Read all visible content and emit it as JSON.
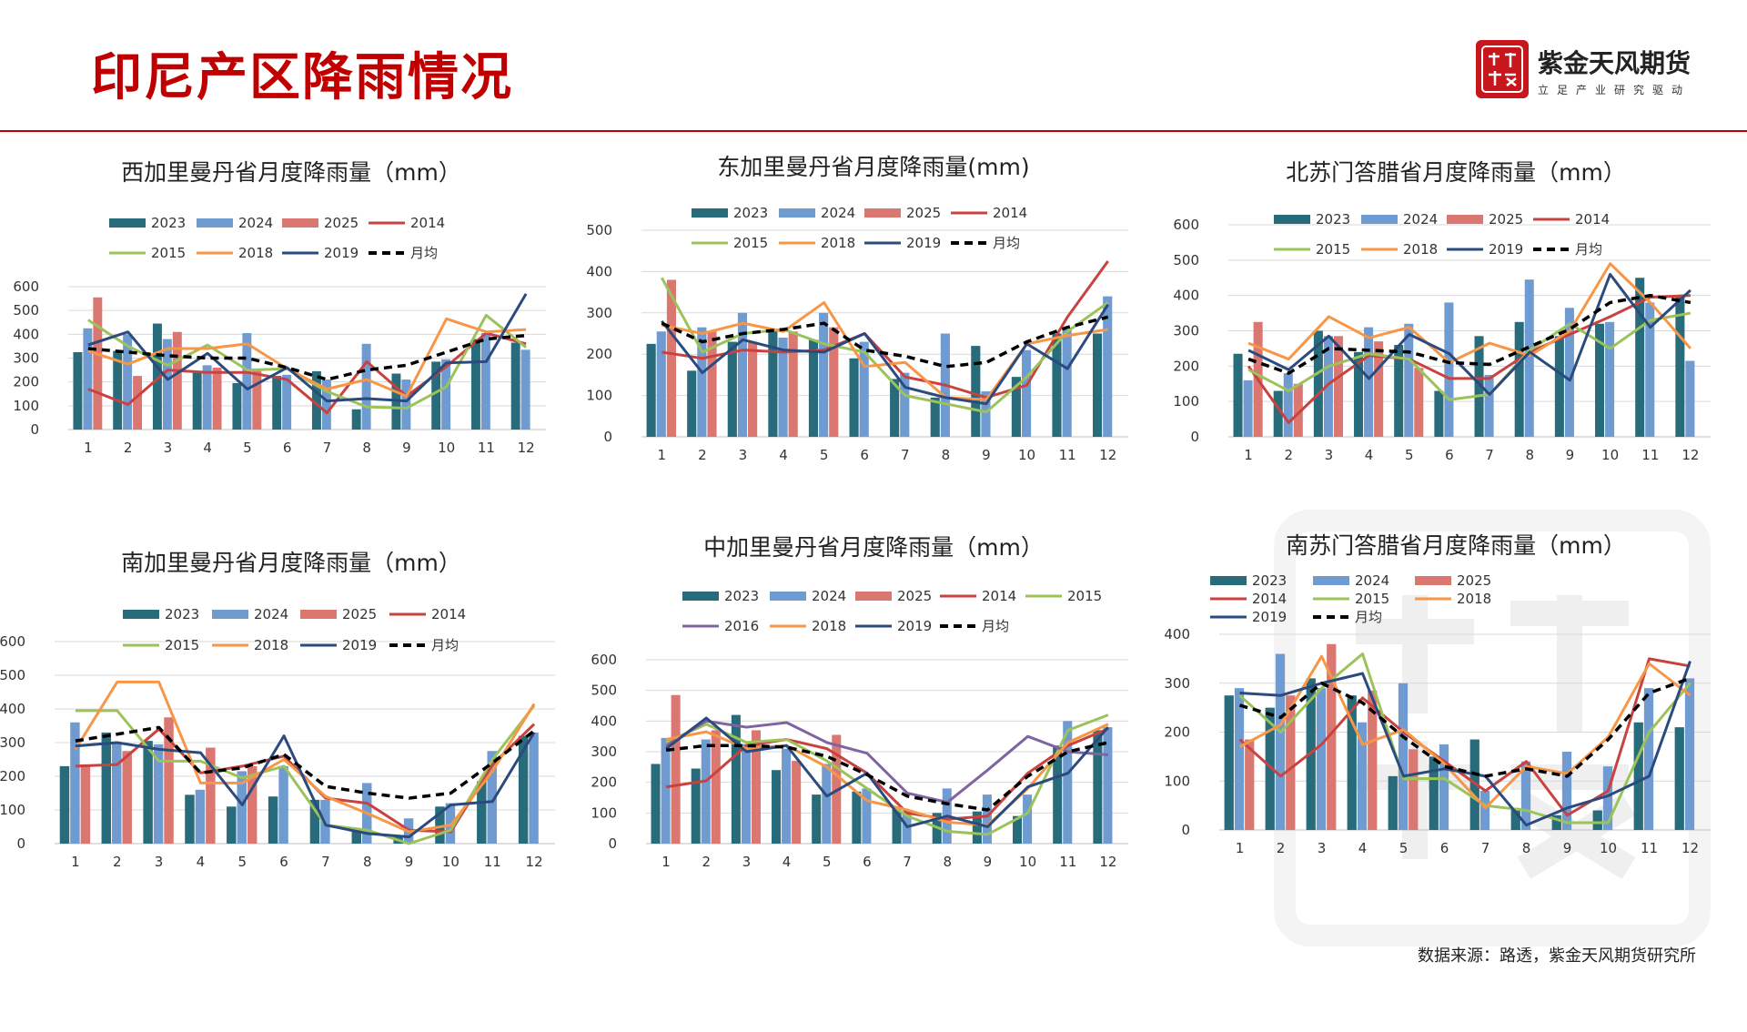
{
  "header": {
    "title": "印尼产区降雨情况",
    "logo_seal_text": "紫天金风",
    "logo_name": "紫金天风期货",
    "logo_slogan": "立足产业研究驱动",
    "accent_color": "#c00000"
  },
  "footer": {
    "source": "数据来源：路透，紫金天风期货研究所"
  },
  "series_styles": {
    "2023": {
      "kind": "bar",
      "color": "#286b7a"
    },
    "2024": {
      "kind": "bar",
      "color": "#6f9bd1"
    },
    "2025": {
      "kind": "bar",
      "color": "#d97770"
    },
    "2014": {
      "kind": "line",
      "color": "#c9423f"
    },
    "2015": {
      "kind": "line",
      "color": "#9bc35a"
    },
    "2016": {
      "kind": "line",
      "color": "#8064a2"
    },
    "2018": {
      "kind": "line",
      "color": "#f79646"
    },
    "2019": {
      "kind": "line",
      "color": "#2b4a7e"
    },
    "月均": {
      "kind": "dash",
      "color": "#000000"
    }
  },
  "chart_data": [
    {
      "type": "bar",
      "title": "西加里曼丹省月度降雨量（mm）",
      "categories": [
        "1",
        "2",
        "3",
        "4",
        "5",
        "6",
        "7",
        "8",
        "9",
        "10",
        "11",
        "12"
      ],
      "ylim": [
        0,
        600
      ],
      "yticks": [
        0,
        100,
        200,
        300,
        400,
        500,
        600
      ],
      "legend_rows": [
        [
          "2023",
          "2024",
          "2025",
          "2014"
        ],
        [
          "2015",
          "2018",
          "2019",
          "月均"
        ]
      ],
      "series": [
        {
          "name": "2023",
          "values": [
            325,
            330,
            445,
            240,
            195,
            225,
            245,
            85,
            235,
            285,
            380,
            365
          ]
        },
        {
          "name": "2024",
          "values": [
            425,
            400,
            380,
            270,
            405,
            230,
            210,
            360,
            210,
            295,
            405,
            335
          ]
        },
        {
          "name": "2025",
          "values": [
            555,
            225,
            410,
            260,
            250,
            null,
            null,
            null,
            null,
            null,
            null,
            null
          ]
        },
        {
          "name": "2014",
          "values": [
            170,
            105,
            250,
            240,
            240,
            210,
            70,
            285,
            140,
            265,
            405,
            360
          ]
        },
        {
          "name": "2015",
          "values": [
            460,
            350,
            270,
            355,
            250,
            255,
            160,
            95,
            90,
            180,
            480,
            345
          ]
        },
        {
          "name": "2018",
          "values": [
            330,
            275,
            340,
            340,
            360,
            255,
            170,
            210,
            140,
            465,
            410,
            420
          ]
        },
        {
          "name": "2019",
          "values": [
            355,
            410,
            210,
            320,
            170,
            260,
            120,
            130,
            120,
            280,
            285,
            570
          ]
        },
        {
          "name": "月均",
          "values": [
            340,
            325,
            310,
            300,
            300,
            260,
            210,
            250,
            270,
            325,
            380,
            395
          ]
        }
      ]
    },
    {
      "type": "bar",
      "title": "东加里曼丹省月度降雨量(mm)",
      "categories": [
        "1",
        "2",
        "3",
        "4",
        "5",
        "6",
        "7",
        "8",
        "9",
        "10",
        "11",
        "12"
      ],
      "ylim": [
        0,
        500
      ],
      "yticks": [
        0,
        100,
        200,
        300,
        400,
        500
      ],
      "legend_rows": [
        [
          "2023",
          "2024",
          "2025",
          "2014"
        ],
        [
          "2015",
          "2018",
          "2019",
          "月均"
        ]
      ],
      "series": [
        {
          "name": "2023",
          "values": [
            225,
            160,
            230,
            260,
            235,
            190,
            140,
            95,
            220,
            145,
            250,
            250
          ]
        },
        {
          "name": "2024",
          "values": [
            255,
            265,
            300,
            240,
            300,
            230,
            155,
            250,
            110,
            210,
            260,
            340
          ]
        },
        {
          "name": "2025",
          "values": [
            380,
            255,
            230,
            255,
            265,
            null,
            null,
            null,
            null,
            null,
            null,
            null
          ]
        },
        {
          "name": "2014",
          "values": [
            205,
            190,
            210,
            205,
            210,
            250,
            145,
            125,
            95,
            125,
            290,
            425
          ]
        },
        {
          "name": "2015",
          "values": [
            385,
            205,
            250,
            260,
            225,
            205,
            100,
            80,
            60,
            145,
            255,
            325
          ]
        },
        {
          "name": "2018",
          "values": [
            270,
            250,
            275,
            255,
            325,
            170,
            180,
            95,
            90,
            225,
            245,
            260
          ]
        },
        {
          "name": "2019",
          "values": [
            280,
            155,
            235,
            210,
            205,
            250,
            120,
            95,
            80,
            225,
            165,
            320
          ]
        },
        {
          "name": "月均",
          "values": [
            275,
            230,
            250,
            260,
            275,
            210,
            195,
            170,
            180,
            230,
            265,
            290
          ]
        }
      ]
    },
    {
      "type": "bar",
      "title": "北苏门答腊省月度降雨量（mm）",
      "categories": [
        "1",
        "2",
        "3",
        "4",
        "5",
        "6",
        "7",
        "8",
        "9",
        "10",
        "11",
        "12"
      ],
      "ylim": [
        0,
        600
      ],
      "yticks": [
        0,
        100,
        200,
        300,
        400,
        500,
        600
      ],
      "legend_rows": [
        [
          "2023",
          "2024",
          "2025",
          "2014"
        ],
        [
          "2015",
          "2018",
          "2019",
          "月均"
        ]
      ],
      "series": [
        {
          "name": "2023",
          "values": [
            235,
            130,
            300,
            240,
            260,
            130,
            285,
            325,
            285,
            320,
            450,
            395
          ]
        },
        {
          "name": "2024",
          "values": [
            160,
            180,
            285,
            310,
            320,
            380,
            175,
            445,
            365,
            325,
            380,
            215
          ]
        },
        {
          "name": "2025",
          "values": [
            325,
            150,
            285,
            270,
            195,
            null,
            null,
            null,
            null,
            null,
            null,
            null
          ]
        },
        {
          "name": "2014",
          "values": [
            200,
            40,
            150,
            230,
            220,
            165,
            165,
            240,
            290,
            340,
            395,
            400
          ]
        },
        {
          "name": "2015",
          "values": [
            190,
            130,
            200,
            235,
            220,
            105,
            120,
            245,
            320,
            250,
            330,
            350
          ]
        },
        {
          "name": "2018",
          "values": [
            265,
            220,
            340,
            280,
            310,
            210,
            265,
            230,
            300,
            490,
            380,
            250
          ]
        },
        {
          "name": "2019",
          "values": [
            245,
            190,
            285,
            165,
            290,
            235,
            120,
            240,
            160,
            460,
            310,
            415
          ]
        },
        {
          "name": "月均",
          "values": [
            220,
            180,
            250,
            245,
            240,
            210,
            205,
            255,
            305,
            380,
            400,
            380
          ]
        }
      ]
    },
    {
      "type": "bar",
      "title": "南加里曼丹省月度降雨量（mm）",
      "categories": [
        "1",
        "2",
        "3",
        "4",
        "5",
        "6",
        "7",
        "8",
        "9",
        "10",
        "11",
        "12"
      ],
      "ylim": [
        0,
        600
      ],
      "yticks": [
        0,
        100,
        200,
        300,
        400,
        500,
        600
      ],
      "legend_rows": [
        [
          "2023",
          "2024",
          "2025",
          "2014"
        ],
        [
          "2015",
          "2018",
          "2019",
          "月均"
        ]
      ],
      "series": [
        {
          "name": "2023",
          "values": [
            230,
            330,
            305,
            145,
            110,
            140,
            130,
            45,
            20,
            110,
            185,
            320
          ]
        },
        {
          "name": "2024",
          "values": [
            360,
            300,
            295,
            160,
            215,
            230,
            130,
            180,
            75,
            120,
            275,
            330
          ]
        },
        {
          "name": "2025",
          "values": [
            235,
            275,
            375,
            285,
            230,
            null,
            null,
            null,
            null,
            null,
            null,
            null
          ]
        },
        {
          "name": "2014",
          "values": [
            230,
            235,
            340,
            210,
            230,
            260,
            135,
            120,
            40,
            35,
            235,
            355
          ]
        },
        {
          "name": "2015",
          "values": [
            395,
            395,
            245,
            245,
            195,
            230,
            55,
            40,
            0,
            40,
            250,
            410
          ]
        },
        {
          "name": "2018",
          "values": [
            280,
            480,
            480,
            180,
            180,
            250,
            140,
            90,
            35,
            55,
            215,
            415
          ]
        },
        {
          "name": "2019",
          "values": [
            290,
            300,
            280,
            270,
            115,
            320,
            55,
            30,
            20,
            115,
            125,
            330
          ]
        },
        {
          "name": "月均",
          "values": [
            305,
            325,
            345,
            210,
            225,
            265,
            170,
            150,
            135,
            150,
            240,
            335
          ]
        }
      ]
    },
    {
      "type": "bar",
      "title": "中加里曼丹省月度降雨量（mm）",
      "categories": [
        "1",
        "2",
        "3",
        "4",
        "5",
        "6",
        "7",
        "8",
        "9",
        "10",
        "11",
        "12"
      ],
      "ylim": [
        0,
        600
      ],
      "yticks": [
        0,
        100,
        200,
        300,
        400,
        500,
        600
      ],
      "legend_rows": [
        [
          "2023",
          "2024",
          "2025",
          "2014",
          "2015"
        ],
        [
          "2016",
          "2018",
          "2019",
          "月均"
        ]
      ],
      "series": [
        {
          "name": "2023",
          "values": [
            260,
            245,
            420,
            240,
            160,
            170,
            120,
            100,
            105,
            90,
            320,
            370
          ]
        },
        {
          "name": "2024",
          "values": [
            345,
            340,
            325,
            310,
            260,
            180,
            105,
            180,
            160,
            160,
            400,
            380
          ]
        },
        {
          "name": "2025",
          "values": [
            485,
            370,
            370,
            270,
            355,
            null,
            null,
            null,
            null,
            null,
            null,
            null
          ]
        },
        {
          "name": "2014",
          "values": [
            185,
            205,
            320,
            340,
            310,
            230,
            100,
            80,
            90,
            230,
            320,
            375
          ]
        },
        {
          "name": "2015",
          "values": [
            330,
            390,
            330,
            340,
            270,
            180,
            90,
            40,
            30,
            100,
            370,
            420
          ]
        },
        {
          "name": "2016",
          "values": [
            320,
            400,
            380,
            395,
            330,
            295,
            165,
            135,
            240,
            350,
            300,
            290
          ]
        },
        {
          "name": "2018",
          "values": [
            340,
            365,
            310,
            320,
            250,
            140,
            110,
            70,
            60,
            180,
            330,
            390
          ]
        },
        {
          "name": "2019",
          "values": [
            310,
            410,
            300,
            320,
            155,
            230,
            55,
            90,
            55,
            185,
            230,
            380
          ]
        },
        {
          "name": "月均",
          "values": [
            305,
            320,
            320,
            315,
            285,
            225,
            155,
            130,
            110,
            220,
            300,
            330
          ]
        }
      ]
    },
    {
      "type": "bar",
      "title": "南苏门答腊省月度降雨量（mm）",
      "categories": [
        "1",
        "2",
        "3",
        "4",
        "5",
        "6",
        "7",
        "8",
        "9",
        "10",
        "11",
        "12"
      ],
      "ylim": [
        0,
        400
      ],
      "yticks": [
        0,
        100,
        200,
        300,
        400
      ],
      "legend_rows": [
        [
          "2023",
          "2024",
          "2025"
        ],
        [
          "2014",
          "2015",
          "2018"
        ],
        [
          "2019",
          "月均"
        ]
      ],
      "series": [
        {
          "name": "2023",
          "values": [
            275,
            250,
            310,
            275,
            110,
            150,
            185,
            45,
            30,
            40,
            220,
            210
          ]
        },
        {
          "name": "2024",
          "values": [
            290,
            360,
            290,
            220,
            300,
            175,
            80,
            140,
            160,
            130,
            290,
            310
          ]
        },
        {
          "name": "2025",
          "values": [
            185,
            275,
            380,
            285,
            165,
            null,
            null,
            null,
            null,
            null,
            null,
            null
          ]
        },
        {
          "name": "2014",
          "values": [
            185,
            110,
            175,
            270,
            200,
            140,
            80,
            140,
            30,
            80,
            350,
            335
          ]
        },
        {
          "name": "2015",
          "values": [
            275,
            200,
            290,
            360,
            105,
            105,
            50,
            40,
            15,
            15,
            200,
            300
          ]
        },
        {
          "name": "2018",
          "values": [
            170,
            215,
            355,
            175,
            205,
            135,
            45,
            130,
            115,
            190,
            340,
            275
          ]
        },
        {
          "name": "2019",
          "values": [
            280,
            275,
            300,
            320,
            110,
            125,
            110,
            10,
            45,
            70,
            110,
            345
          ]
        },
        {
          "name": "月均",
          "values": [
            255,
            230,
            300,
            260,
            190,
            130,
            110,
            125,
            110,
            185,
            280,
            310
          ]
        }
      ]
    }
  ]
}
